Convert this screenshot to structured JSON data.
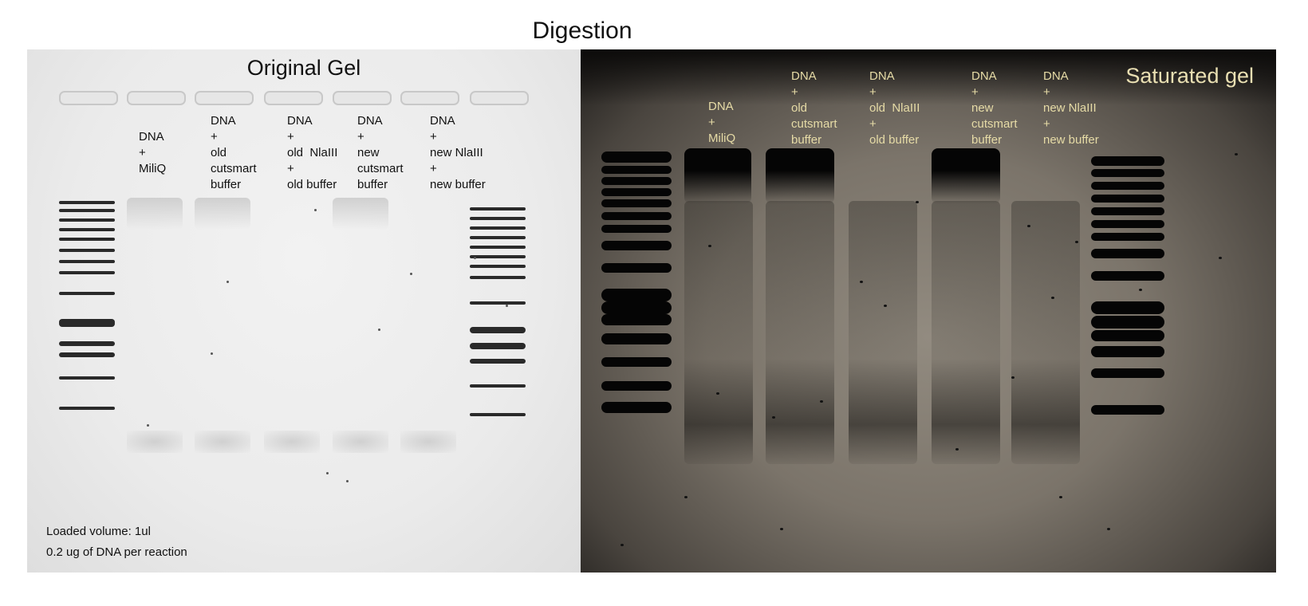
{
  "figure": {
    "title": "Digestion",
    "original_gel": {
      "title": "Original Gel",
      "lane_labels": [
        "DNA\n+\nMiliQ",
        "DNA\n+\nold\ncutsmart\nbuffer",
        "DNA\n+\nold  NlaIII\n+\nold buffer",
        "DNA\n+\nnew\ncutsmart\nbuffer",
        "DNA\n+\nnew NlaIII\n+\nnew buffer"
      ],
      "notes": {
        "volume": "Loaded volume: 1ul",
        "dna": "0.2 ug of DNA per reaction"
      }
    },
    "saturated_gel": {
      "title": "Saturated gel",
      "lane_labels": [
        "DNA\n+\nMiliQ",
        "DNA\n+\nold\ncutsmart\nbuffer",
        "DNA\n+\nold  NlaIII\n+\nold buffer",
        "DNA\n+\nnew\ncutsmart\nbuffer",
        "DNA\n+\nnew NlaIII\n+\nnew buffer"
      ]
    },
    "colors": {
      "original_background": "#ebebeb",
      "saturated_background": "#7b746a",
      "saturated_label": "#e6dba6"
    }
  }
}
